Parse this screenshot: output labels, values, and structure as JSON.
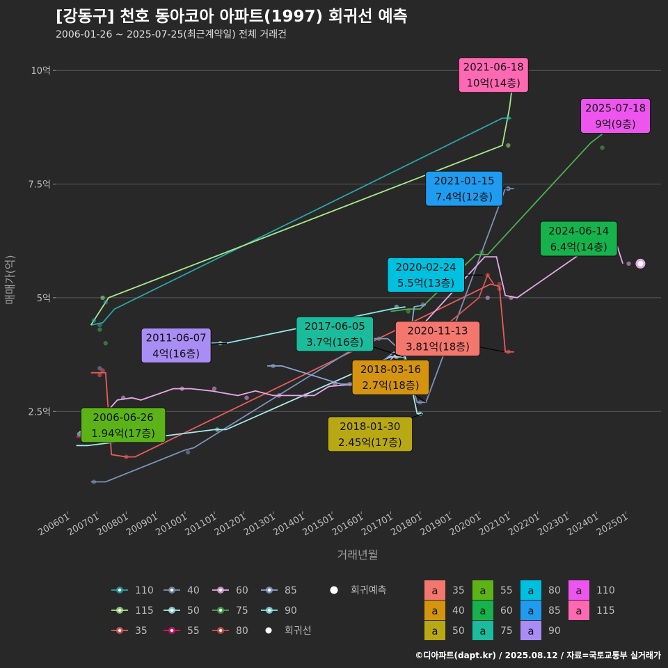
{
  "title": "[강동구] 천호 동아코아 아파트(1997) 회귀선 예측",
  "subtitle": "2006-01-26 ~ 2025-07-25(최근계약일) 전체 거래건",
  "caption": "©디아파트(dapt.kr) / 2025.08.12 / 자료=국토교통부 실거래가",
  "chart_data": {
    "type": "scatter",
    "xlabel": "거래년월",
    "ylabel": "매매가(억)",
    "xlim": [
      2005.6,
      2026.2
    ],
    "ylim": [
      0.3,
      10.6
    ],
    "x_ticks": [
      {
        "value": 2006,
        "label": "200601"
      },
      {
        "value": 2007,
        "label": "200701"
      },
      {
        "value": 2008,
        "label": "200801"
      },
      {
        "value": 2009,
        "label": "200901"
      },
      {
        "value": 2010,
        "label": "201001"
      },
      {
        "value": 2011,
        "label": "201101"
      },
      {
        "value": 2012,
        "label": "201201"
      },
      {
        "value": 2013,
        "label": "201301"
      },
      {
        "value": 2014,
        "label": "201401"
      },
      {
        "value": 2015,
        "label": "201501"
      },
      {
        "value": 2016,
        "label": "201601"
      },
      {
        "value": 2017,
        "label": "201701"
      },
      {
        "value": 2018,
        "label": "201801"
      },
      {
        "value": 2019,
        "label": "201901"
      },
      {
        "value": 2020,
        "label": "202001"
      },
      {
        "value": 2021,
        "label": "202101"
      },
      {
        "value": 2022,
        "label": "202201"
      },
      {
        "value": 2023,
        "label": "202301"
      },
      {
        "value": 2024,
        "label": "202401"
      },
      {
        "value": 2025,
        "label": "202501"
      }
    ],
    "y_ticks": [
      {
        "value": 2.5,
        "label": "2.5억"
      },
      {
        "value": 5,
        "label": "5억"
      },
      {
        "value": 7.5,
        "label": "7.5억"
      },
      {
        "value": 10,
        "label": "10억"
      }
    ],
    "series": [
      {
        "name": "110",
        "color": "#2aa5a5",
        "points": [
          [
            2006.9,
            4.5
          ],
          [
            2007.1,
            4.4
          ],
          [
            2007.3,
            4.9
          ],
          [
            2021.0,
            8.95
          ]
        ],
        "line": [
          [
            2006.8,
            4.4
          ],
          [
            2007.2,
            4.45
          ],
          [
            2007.6,
            4.75
          ],
          [
            2020.8,
            8.95
          ],
          [
            2021.1,
            8.95
          ]
        ]
      },
      {
        "name": "115",
        "color": "#a6e88a",
        "points": [
          [
            2007.2,
            5.0
          ],
          [
            2021.0,
            8.35
          ],
          [
            2021.2,
            10.0
          ]
        ],
        "line": [
          [
            2006.8,
            4.4
          ],
          [
            2007.0,
            4.6
          ],
          [
            2007.4,
            5.0
          ],
          [
            2020.8,
            8.35
          ],
          [
            2021.05,
            9.2
          ],
          [
            2021.2,
            10.0
          ],
          [
            2021.5,
            10.0
          ]
        ]
      },
      {
        "name": "35",
        "color": "#e85c5c",
        "points": [
          [
            2007.1,
            3.3
          ],
          [
            2007.2,
            3.4
          ],
          [
            2008.0,
            1.5
          ],
          [
            2020.7,
            5.2
          ],
          [
            2021.0,
            3.81
          ]
        ],
        "line": [
          [
            2006.8,
            3.35
          ],
          [
            2007.3,
            3.35
          ],
          [
            2007.5,
            1.55
          ],
          [
            2008.0,
            1.5
          ],
          [
            2008.3,
            1.5
          ],
          [
            2020.4,
            5.3
          ],
          [
            2020.7,
            5.25
          ],
          [
            2020.9,
            3.81
          ],
          [
            2021.2,
            3.81
          ]
        ]
      },
      {
        "name": "40",
        "color": "#7b93b8",
        "points": [
          [
            2006.9,
            0.95
          ],
          [
            2007.1,
            3.45
          ],
          [
            2010.1,
            1.6
          ],
          [
            2016.6,
            4.1
          ],
          [
            2017.3,
            3.8
          ],
          [
            2018.0,
            2.7
          ],
          [
            2021.0,
            7.4
          ]
        ],
        "line": [
          [
            2006.8,
            0.95
          ],
          [
            2007.3,
            0.95
          ],
          [
            2010.0,
            1.65
          ],
          [
            2010.3,
            1.7
          ],
          [
            2016.3,
            4.1
          ],
          [
            2016.9,
            4.1
          ],
          [
            2017.4,
            3.8
          ],
          [
            2017.9,
            2.7
          ],
          [
            2018.2,
            2.7
          ],
          [
            2020.9,
            7.4
          ],
          [
            2021.2,
            7.4
          ]
        ]
      },
      {
        "name": "50",
        "color": "#a6ecec",
        "points": [
          [
            2006.4,
            2.0
          ],
          [
            2011.1,
            2.1
          ],
          [
            2017.2,
            3.7
          ],
          [
            2018.0,
            2.45
          ]
        ],
        "line": [
          [
            2006.3,
            1.75
          ],
          [
            2006.7,
            1.75
          ],
          [
            2011.0,
            2.1
          ],
          [
            2011.4,
            2.1
          ],
          [
            2017.0,
            3.7
          ],
          [
            2017.5,
            3.7
          ],
          [
            2017.9,
            2.45
          ],
          [
            2018.1,
            2.45
          ]
        ]
      },
      {
        "name": "55",
        "color": "#e8106e",
        "points": [
          [
            2006.6,
            1.94
          ]
        ],
        "line": [
          [
            2006.3,
            1.94
          ],
          [
            2006.8,
            1.94
          ]
        ]
      },
      {
        "name": "60",
        "color": "#e8a8e8",
        "points": [
          [
            2007.9,
            2.8
          ],
          [
            2009.9,
            3.0
          ],
          [
            2011.0,
            3.0
          ],
          [
            2012.1,
            2.8
          ],
          [
            2013.2,
            2.85
          ],
          [
            2014.1,
            2.85
          ],
          [
            2015.1,
            3.1
          ],
          [
            2015.7,
            3.1
          ],
          [
            2020.3,
            5.0
          ],
          [
            2021.1,
            5.0
          ],
          [
            2025.1,
            5.75
          ]
        ],
        "line": [
          [
            2006.4,
            2.05
          ],
          [
            2006.8,
            2.1
          ],
          [
            2007.7,
            2.75
          ],
          [
            2008.2,
            2.8
          ],
          [
            2008.5,
            2.75
          ],
          [
            2009.6,
            3.0
          ],
          [
            2010.2,
            3.0
          ],
          [
            2010.9,
            2.95
          ],
          [
            2011.8,
            2.85
          ],
          [
            2012.4,
            2.95
          ],
          [
            2013.0,
            2.85
          ],
          [
            2013.5,
            2.85
          ],
          [
            2013.9,
            2.85
          ],
          [
            2014.4,
            2.85
          ],
          [
            2014.9,
            3.05
          ],
          [
            2015.8,
            3.1
          ],
          [
            2016.1,
            3.0
          ],
          [
            2020.2,
            5.9
          ],
          [
            2020.6,
            5.9
          ],
          [
            2020.9,
            5.05
          ],
          [
            2021.3,
            5.0
          ],
          [
            2024.2,
            6.3
          ],
          [
            2024.7,
            6.15
          ],
          [
            2024.9,
            5.75
          ]
        ]
      },
      {
        "name": "75",
        "color": "#4caf50",
        "points": [
          [
            2007.1,
            4.3
          ],
          [
            2007.3,
            4.0
          ],
          [
            2017.6,
            4.7
          ],
          [
            2020.1,
            6.0
          ],
          [
            2024.2,
            8.3
          ]
        ],
        "line": [
          [
            2017.0,
            4.7
          ],
          [
            2017.6,
            4.75
          ],
          [
            2018.0,
            4.75
          ],
          [
            2019.9,
            5.95
          ],
          [
            2020.3,
            5.95
          ],
          [
            2023.8,
            8.4
          ],
          [
            2024.2,
            8.6
          ]
        ]
      },
      {
        "name": "80",
        "color": "#d9534f",
        "points": [
          [
            2017.6,
            3.81
          ],
          [
            2020.3,
            5.5
          ],
          [
            2020.7,
            5.3
          ]
        ],
        "line": [
          [
            2017.4,
            3.81
          ],
          [
            2017.8,
            3.81
          ],
          [
            2020.0,
            5.0
          ],
          [
            2020.3,
            5.5
          ],
          [
            2020.5,
            5.3
          ]
        ]
      },
      {
        "name": "85",
        "color": "#8ea4d2",
        "points": [
          [
            2013.0,
            3.5
          ],
          [
            2015.6,
            3.1
          ],
          [
            2017.3,
            3.85
          ],
          [
            2018.1,
            4.85
          ],
          [
            2021.0,
            7.4
          ],
          [
            2024.1,
            6.4
          ]
        ],
        "line": [
          [
            2012.8,
            3.5
          ],
          [
            2013.3,
            3.5
          ],
          [
            2015.3,
            3.1
          ],
          [
            2015.8,
            3.1
          ],
          [
            2017.1,
            3.8
          ],
          [
            2017.6,
            3.8
          ],
          [
            2017.8,
            4.8
          ],
          [
            2018.2,
            4.85
          ]
        ]
      },
      {
        "name": "90",
        "color": "#8ee8e8",
        "points": [
          [
            2011.2,
            4.0
          ],
          [
            2017.2,
            4.8
          ]
        ],
        "line": [
          [
            2010.9,
            4.0
          ],
          [
            2011.4,
            4.0
          ],
          [
            2017.0,
            4.75
          ],
          [
            2017.5,
            4.8
          ]
        ]
      }
    ],
    "predictions": [
      {
        "x": 2025.5,
        "y": 9.0,
        "color": "#2aa5a5"
      },
      {
        "x": 2025.5,
        "y": 5.75,
        "color": "#e8a8e8"
      }
    ],
    "annotations": [
      {
        "date": "2021-06-18",
        "price": "10억(14층)",
        "x": 2021.46,
        "y": 10.0,
        "lx": 2020.5,
        "ly": 9.9,
        "fill": "#ff69b4"
      },
      {
        "date": "2025-07-18",
        "price": "9억(9층)",
        "x": 2025.55,
        "y": 9.0,
        "lx": 2024.65,
        "ly": 9.0,
        "fill": "#ee55ee"
      },
      {
        "date": "2021-01-15",
        "price": "7.4억(12층)",
        "x": 2021.04,
        "y": 7.4,
        "lx": 2019.5,
        "ly": 7.4,
        "fill": "#1f9cf0"
      },
      {
        "date": "2024-06-14",
        "price": "6.4억(14층)",
        "x": 2024.45,
        "y": 6.4,
        "lx": 2023.4,
        "ly": 6.3,
        "fill": "#16b34c"
      },
      {
        "date": "2020-02-24",
        "price": "5.5억(13층)",
        "x": 2020.15,
        "y": 5.5,
        "lx": 2018.2,
        "ly": 5.5,
        "fill": "#00c0e0"
      },
      {
        "date": "2020-11-13",
        "price": "3.81억(18층)",
        "x": 2020.87,
        "y": 3.81,
        "lx": 2018.6,
        "ly": 4.1,
        "fill": "#f4776e"
      },
      {
        "date": "2011-06-07",
        "price": "4억(16층)",
        "x": 2011.43,
        "y": 4.0,
        "lx": 2009.7,
        "ly": 3.95,
        "fill": "#a98df5"
      },
      {
        "date": "2017-06-05",
        "price": "3.7억(16층)",
        "x": 2017.43,
        "y": 3.7,
        "lx": 2015.1,
        "ly": 4.2,
        "fill": "#1abc9c"
      },
      {
        "date": "2018-03-16",
        "price": "2.7억(18층)",
        "x": 2018.2,
        "y": 2.7,
        "lx": 2017.0,
        "ly": 3.25,
        "fill": "#d4940f"
      },
      {
        "date": "2018-01-30",
        "price": "2.45억(17층)",
        "x": 2018.08,
        "y": 2.45,
        "lx": 2016.3,
        "ly": 2.0,
        "fill": "#b8a814"
      },
      {
        "date": "2006-06-26",
        "price": "1.94억(17층)",
        "x": 2006.49,
        "y": 1.94,
        "lx": 2007.9,
        "ly": 2.2,
        "fill": "#5bb318"
      }
    ],
    "legend_lines": [
      "110",
      "40",
      "60",
      "85",
      "115",
      "50",
      "75",
      "90",
      "35",
      "55",
      "80"
    ],
    "legend_regression_label": "회귀선",
    "legend_prediction_label": "회귀예측",
    "legend_labels": [
      {
        "name": "35",
        "fill": "#f4776e"
      },
      {
        "name": "40",
        "fill": "#d4940f"
      },
      {
        "name": "50",
        "fill": "#b8a814"
      },
      {
        "name": "55",
        "fill": "#5bb318"
      },
      {
        "name": "60",
        "fill": "#16b34c"
      },
      {
        "name": "75",
        "fill": "#1abc9c"
      },
      {
        "name": "80",
        "fill": "#00c0e0"
      },
      {
        "name": "85",
        "fill": "#1f9cf0"
      },
      {
        "name": "90",
        "fill": "#a98df5"
      },
      {
        "name": "110",
        "fill": "#ee55ee"
      },
      {
        "name": "115",
        "fill": "#ff69b4"
      }
    ],
    "legend_label_glyph": "a"
  }
}
